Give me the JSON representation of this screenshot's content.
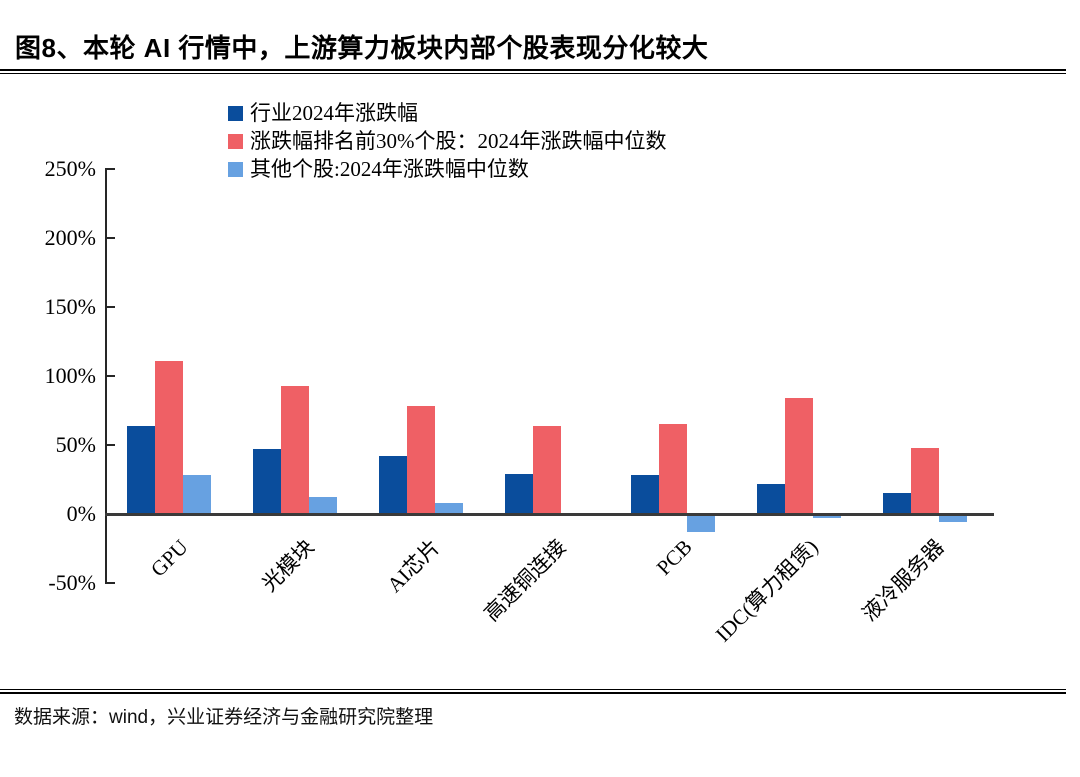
{
  "title": "图8、本轮 AI 行情中，上游算力板块内部个股表现分化较大",
  "footer": {
    "source": "数据来源：wind，兴业证券经济与金融研究院整理"
  },
  "chart_data": {
    "type": "bar",
    "title": "",
    "categories": [
      "GPU",
      "光模块",
      "AI芯片",
      "高速铜连接",
      "PCB",
      "IDC(算力租赁)",
      "液冷服务器"
    ],
    "series": [
      {
        "name": "行业2024年涨跌幅",
        "color": "#0A4D9C",
        "values": [
          64,
          47,
          42,
          29,
          28,
          22,
          15
        ]
      },
      {
        "name": "涨跌幅排名前30%个股：2024年涨跌幅中位数",
        "color": "#EF6065",
        "values": [
          111,
          93,
          78,
          64,
          65,
          84,
          48
        ]
      },
      {
        "name": "其他个股:2024年涨跌幅中位数",
        "color": "#67A1E1",
        "values": [
          28,
          12,
          8,
          1,
          -12,
          -2,
          -5
        ]
      }
    ],
    "y_ticks": [
      250,
      200,
      150,
      100,
      50,
      0,
      -50
    ],
    "y_tick_labels": [
      "250%",
      "200%",
      "150%",
      "100%",
      "50%",
      "0%",
      "-50%"
    ],
    "ylim": [
      -50,
      250
    ],
    "unit": "percent",
    "grid": false,
    "legend_position": "top"
  }
}
